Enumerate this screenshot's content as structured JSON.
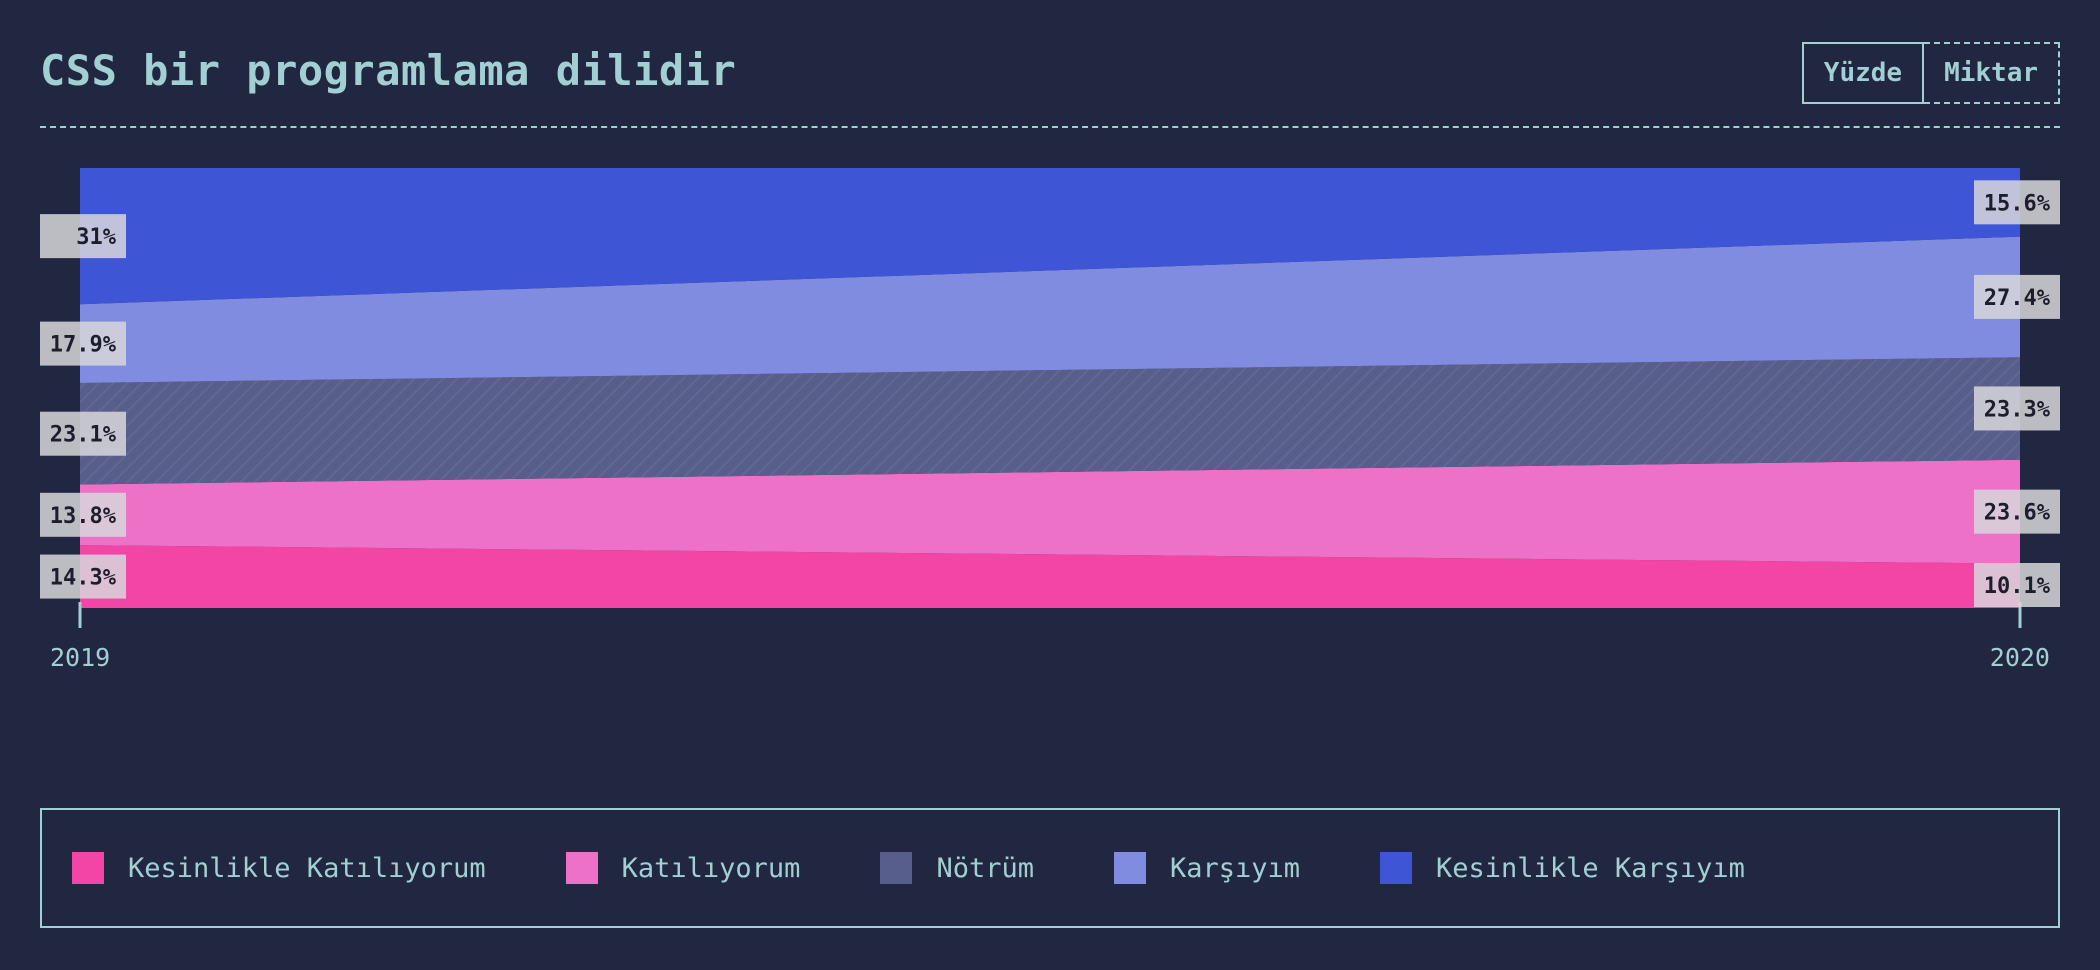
{
  "header": {
    "title": "CSS bir programlama dilidir",
    "toggle": {
      "percent_label": "Yüzde",
      "count_label": "Miktar",
      "active": "percent"
    }
  },
  "chart_data": {
    "type": "area",
    "stacked": true,
    "normalized": true,
    "title": "CSS bir programlama dilidir",
    "x": [
      "2019",
      "2020"
    ],
    "ylim": [
      0,
      100
    ],
    "unit": "%",
    "series": [
      {
        "name": "Kesinlikle Katılıyorum",
        "values": [
          14.3,
          10.1
        ],
        "color": "#f245a6"
      },
      {
        "name": "Katılıyorum",
        "values": [
          13.8,
          23.6
        ],
        "color": "#ec71c7"
      },
      {
        "name": "Nötrüm",
        "values": [
          23.1,
          23.3
        ],
        "color": "#585e8b",
        "pattern": "diagonal-stripes"
      },
      {
        "name": "Karşıyım",
        "values": [
          17.9,
          27.4
        ],
        "color": "#7f8ce0"
      },
      {
        "name": "Kesinlikle Karşıyım",
        "values": [
          31.0,
          15.6
        ],
        "color": "#3e55d6"
      }
    ],
    "labels": {
      "2019": [
        "14.3%",
        "13.8%",
        "23.1%",
        "17.9%",
        "31%"
      ],
      "2020": [
        "10.1%",
        "23.6%",
        "23.3%",
        "27.4%",
        "15.6%"
      ]
    },
    "legend_position": "bottom"
  },
  "colors": {
    "background": "#222741",
    "accent": "#a1cfd3",
    "label_bg": "#d7d7db",
    "label_text": "#1d1d2c"
  }
}
